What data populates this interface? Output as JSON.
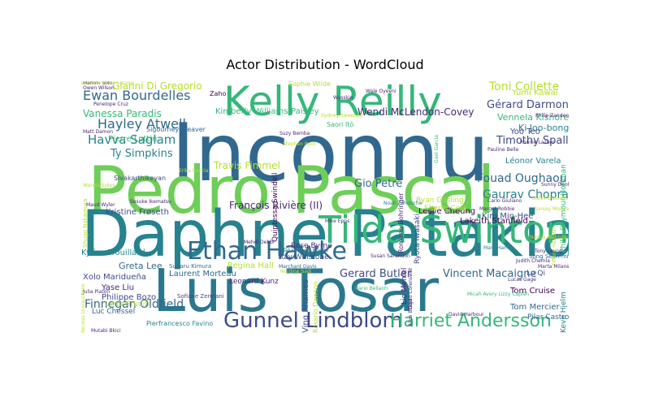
{
  "chart_data": {
    "type": "wordcloud",
    "title": "Actor Distribution - WordCloud",
    "colors": [
      "#440154",
      "#482878",
      "#3e4a89",
      "#31688e",
      "#26828e",
      "#1f9e89",
      "#35b779",
      "#6ece58",
      "#b5de2b",
      "#fde725"
    ],
    "words": [
      {
        "text": "Inconnu",
        "weight": 100,
        "color": "#31688e"
      },
      {
        "text": "Pedro Pascal",
        "weight": 86,
        "color": "#6ece58"
      },
      {
        "text": "Daphne Patakia",
        "weight": 84,
        "color": "#26828e"
      },
      {
        "text": "Luis Tosar",
        "weight": 80,
        "color": "#2a788e"
      },
      {
        "text": "Kelly Reilly",
        "weight": 54,
        "color": "#35b779"
      },
      {
        "text": "Tilda Swinton",
        "weight": 52,
        "color": "#35b779"
      },
      {
        "text": "Ethan Hawke",
        "weight": 40,
        "color": "#31688e"
      },
      {
        "text": "Gunnel Lindblom",
        "weight": 32,
        "color": "#3e4a89"
      },
      {
        "text": "Harriet Andersson",
        "weight": 28,
        "color": "#35b779"
      },
      {
        "text": "Ewan Bourdelles",
        "weight": 23,
        "color": "#31688e"
      },
      {
        "text": "Hayley Atwell",
        "weight": 23,
        "color": "#31688e"
      },
      {
        "text": "Havva Saglam",
        "weight": 22,
        "color": "#26828e"
      },
      {
        "text": "Toni Collette",
        "weight": 20,
        "color": "#b5de2b"
      },
      {
        "text": "Gérard Darmon",
        "weight": 20,
        "color": "#3e4a89"
      },
      {
        "text": "Fouad Oughaou",
        "weight": 20,
        "color": "#31688e"
      },
      {
        "text": "Gaurav Chopra",
        "weight": 19,
        "color": "#26828e"
      },
      {
        "text": "Timothy Spall",
        "weight": 18,
        "color": "#3e4a89"
      },
      {
        "text": "Gianni Di Gregorio",
        "weight": 17,
        "color": "#b5de2b"
      },
      {
        "text": "Vanessa Paradis",
        "weight": 17,
        "color": "#35b779"
      },
      {
        "text": "Ty Simpkins",
        "weight": 17,
        "color": "#26828e"
      },
      {
        "text": "Travis Fimmel",
        "weight": 16,
        "color": "#b5de2b"
      },
      {
        "text": "François Rivière (II)",
        "weight": 16,
        "color": "#482878"
      },
      {
        "text": "Gio Petré",
        "weight": 16,
        "color": "#31688e"
      },
      {
        "text": "Gerard Butler",
        "weight": 16,
        "color": "#3e4a89"
      },
      {
        "text": "Vincent Macaigne",
        "weight": 16,
        "color": "#31688e"
      },
      {
        "text": "Finnegan Oldfield",
        "weight": 16,
        "color": "#31688e"
      },
      {
        "text": "Wendi McLendon-Covey",
        "weight": 14,
        "color": "#482878"
      },
      {
        "text": "Yumi Kawai",
        "weight": 14,
        "color": "#b5de2b"
      },
      {
        "text": "Vennela Kishore",
        "weight": 14,
        "color": "#35b779"
      },
      {
        "text": "Ki Joo-bong",
        "weight": 14,
        "color": "#26828e"
      },
      {
        "text": "Léonor Varela",
        "weight": 13,
        "color": "#26828e"
      },
      {
        "text": "Yoo Teo",
        "weight": 13,
        "color": "#3e4a89"
      },
      {
        "text": "Kim Min-Hee",
        "weight": 13,
        "color": "#3e4a89"
      },
      {
        "text": "Lakeith Stanfield",
        "weight": 13,
        "color": "#440154"
      },
      {
        "text": "Leslie Cheung",
        "weight": 12,
        "color": "#440154"
      },
      {
        "text": "Greta Lee",
        "weight": 13,
        "color": "#31688e"
      },
      {
        "text": "Xolo Maridueña",
        "weight": 12,
        "color": "#3e4a89"
      },
      {
        "text": "Yase Liu",
        "weight": 12,
        "color": "#482878"
      },
      {
        "text": "Philippe Bozo",
        "weight": 12,
        "color": "#3e4a89"
      },
      {
        "text": "Tom Cruise",
        "weight": 12,
        "color": "#440154"
      },
      {
        "text": "Tom Mercier",
        "weight": 12,
        "color": "#31688e"
      },
      {
        "text": "Kylian Trouillard",
        "weight": 11,
        "color": "#26828e"
      },
      {
        "text": "Laurent Morteau",
        "weight": 11,
        "color": "#31688e"
      },
      {
        "text": "Leonard Kunz",
        "weight": 11,
        "color": "#482878"
      },
      {
        "text": "Ray Winstone",
        "weight": 11,
        "color": "#3e4a89"
      },
      {
        "text": "Rose Byrne",
        "weight": 11,
        "color": "#482878"
      },
      {
        "text": "Regina Hall",
        "weight": 11,
        "color": "#b5de2b"
      },
      {
        "text": "Ving Rhames",
        "weight": 12,
        "color": "#3e4a89"
      },
      {
        "text": "Lio Mehiel",
        "weight": 11,
        "color": "#482878"
      },
      {
        "text": "Ryota Iwasaki",
        "weight": 11,
        "color": "#3e4a89"
      },
      {
        "text": "Sherry Cola",
        "weight": 11,
        "color": "#b5de2b"
      },
      {
        "text": "Ryan Gosling",
        "weight": 11,
        "color": "#b5de2b"
      },
      {
        "text": "Kristine Frøseth",
        "weight": 11,
        "color": "#3e4a89"
      },
      {
        "text": "Pierre Lottin",
        "weight": 11,
        "color": "#35b779"
      },
      {
        "text": "Kimberly Williams-Paisley",
        "weight": 11,
        "color": "#35b779"
      },
      {
        "text": "Luc Chessel",
        "weight": 10,
        "color": "#31688e"
      },
      {
        "text": "Lena Brudin",
        "weight": 10,
        "color": "#b5de2b"
      },
      {
        "text": "Quintessa Swindell",
        "weight": 10,
        "color": "#440154"
      },
      {
        "text": "Philip Seymour Hoffman",
        "weight": 11,
        "color": "#35b779"
      },
      {
        "text": "Keve Hjelm",
        "weight": 11,
        "color": "#26828e"
      },
      {
        "text": "Pilar Castro",
        "weight": 10,
        "color": "#31688e"
      },
      {
        "text": "Lu Qi",
        "weight": 10,
        "color": "#3e4a89"
      },
      {
        "text": "Song Seon-mi",
        "weight": 9,
        "color": "#31688e"
      },
      {
        "text": "Pierfrancesco Favino",
        "weight": 9,
        "color": "#26828e"
      },
      {
        "text": "Sophie Wilde",
        "weight": 9,
        "color": "#b5de2b"
      },
      {
        "text": "Sigourney Weaver",
        "weight": 9,
        "color": "#31688e"
      },
      {
        "text": "Sivakarthikeyan",
        "weight": 9,
        "color": "#3e4a89"
      },
      {
        "text": "Shugo Nakamura",
        "weight": 9,
        "color": "#b5de2b"
      },
      {
        "text": "Saori Itô",
        "weight": 9,
        "color": "#35b779"
      },
      {
        "text": "Rosario Dawson",
        "weight": 9,
        "color": "#b5de2b"
      },
      {
        "text": "Romane Bohringer",
        "weight": 9,
        "color": "#482878"
      },
      {
        "text": "Subaru Kimura",
        "weight": 8,
        "color": "#31688e"
      },
      {
        "text": "Sofiane Zermani",
        "weight": 8,
        "color": "#3e4a89"
      },
      {
        "text": "Zaho",
        "weight": 9,
        "color": "#440154"
      },
      {
        "text": "Penelope Cruz",
        "weight": 8,
        "color": "#482878"
      },
      {
        "text": "Suzy Bemba",
        "weight": 7,
        "color": "#482878"
      },
      {
        "text": "Mehdi Dehbi",
        "weight": 7,
        "color": "#482878"
      },
      {
        "text": "Noah Zandoche",
        "weight": 7,
        "color": "#26828e"
      },
      {
        "text": "Susan Sarandon",
        "weight": 7,
        "color": "#482878"
      },
      {
        "text": "Sosuke Ikematsu",
        "weight": 7,
        "color": "#482878"
      },
      {
        "text": "Takanosuke Bhatia",
        "weight": 7,
        "color": "#31688e"
      },
      {
        "text": "Nordine Sadi",
        "weight": 7,
        "color": "#b5de2b"
      },
      {
        "text": "Marchant Davis",
        "weight": 7,
        "color": "#31688e"
      },
      {
        "text": "Mutabi Bkici",
        "weight": 7,
        "color": "#482878"
      },
      {
        "text": "Mario Bellanti",
        "weight": 7,
        "color": "#35b779"
      },
      {
        "text": "Margot Robbie",
        "weight": 7,
        "color": "#482878"
      },
      {
        "text": "Mark Hamill",
        "weight": 7,
        "color": "#26828e"
      },
      {
        "text": "Judith Chemla",
        "weight": 7,
        "color": "#482878"
      },
      {
        "text": "Micah Avery Lizzy Caplan",
        "weight": 7,
        "color": "#35b779"
      },
      {
        "text": "Lucas Gage",
        "weight": 7,
        "color": "#482878"
      },
      {
        "text": "Steve Buscemi",
        "weight": 7,
        "color": "#b5de2b"
      },
      {
        "text": "Ronnie Lazaro",
        "weight": 7,
        "color": "#482878"
      },
      {
        "text": "Pauline Belle",
        "weight": 7,
        "color": "#482878"
      },
      {
        "text": "Philip Zanden",
        "weight": 7,
        "color": "#482878"
      },
      {
        "text": "Marta Milans",
        "weight": 7,
        "color": "#482878"
      },
      {
        "text": "Sunny Deol",
        "weight": 7,
        "color": "#482878"
      },
      {
        "text": "Stephen Root",
        "weight": 7,
        "color": "#b5de2b"
      },
      {
        "text": "Wysskin",
        "weight": 7,
        "color": "#482878"
      },
      {
        "text": "Owen Wilson",
        "weight": 6,
        "color": "#482878"
      },
      {
        "text": "Manolo Solo",
        "weight": 6,
        "color": "#482878"
      },
      {
        "text": "Matt Damon",
        "weight": 6,
        "color": "#482878"
      },
      {
        "text": "Wanda Sykes",
        "weight": 6,
        "color": "#b5de2b"
      },
      {
        "text": "Wale Oyeeni",
        "weight": 6,
        "color": "#482878"
      },
      {
        "text": "Julia Piaton",
        "weight": 6,
        "color": "#482878"
      },
      {
        "text": "Gael Garcia",
        "weight": 6,
        "color": "#35b779"
      },
      {
        "text": "Maud Wyler",
        "weight": 6,
        "color": "#482878"
      },
      {
        "text": "Sanjay Mishra",
        "weight": 6,
        "color": "#b5de2b"
      },
      {
        "text": "Nanda Weldigar",
        "weight": 6,
        "color": "#b5de2b"
      },
      {
        "text": "Tony Leung",
        "weight": 6,
        "color": "#482878"
      },
      {
        "text": "Erika Ruccia",
        "weight": 6,
        "color": "#b5de2b"
      },
      {
        "text": "Alice Braga",
        "weight": 6,
        "color": "#482878"
      },
      {
        "text": "David Corenswet",
        "weight": 6,
        "color": "#482878"
      },
      {
        "text": "David Harbour",
        "weight": 6,
        "color": "#482878"
      },
      {
        "text": "Tiffany Haddish",
        "weight": 6,
        "color": "#b5de2b"
      },
      {
        "text": "Sydney Sweeney",
        "weight": 6,
        "color": "#b5de2b"
      },
      {
        "text": "Mike Epps",
        "weight": 6,
        "color": "#482878"
      },
      {
        "text": "Nicolas Duvauchelle",
        "weight": 6,
        "color": "#b5de2b"
      },
      {
        "text": "Carlo Giuliano",
        "weight": 6,
        "color": "#482878"
      },
      {
        "text": "Daphne Marie Lacroix",
        "weight": 6,
        "color": "#b5de2b"
      }
    ]
  }
}
